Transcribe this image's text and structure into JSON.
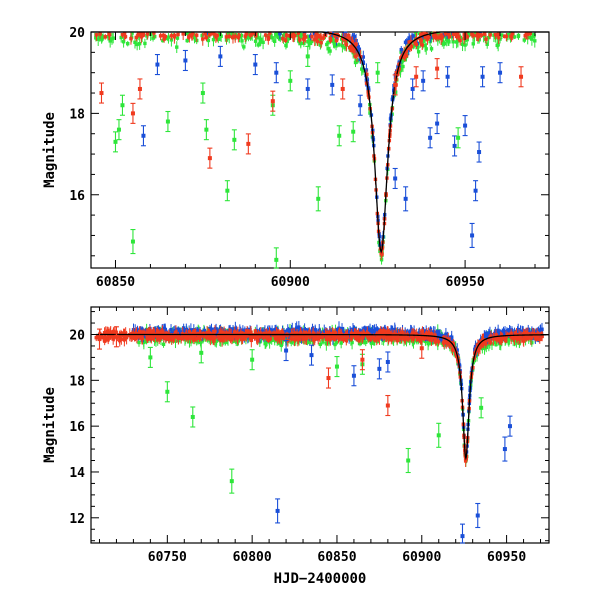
{
  "chart_data": [
    {
      "type": "scatter",
      "panel": "top",
      "title": "",
      "xlabel": "",
      "ylabel": "Magnitude",
      "xlim": [
        60843,
        60974
      ],
      "ylim": [
        20.0,
        14.2
      ],
      "x_ticks": [
        60850,
        60900,
        60950
      ],
      "y_ticks": [
        16,
        18,
        20
      ],
      "model_peak": {
        "t0": 60926.0,
        "peak_mag": 14.6,
        "base_mag": 20.1
      },
      "series": [
        {
          "name": "blue",
          "color": "#1a4fd8",
          "points": [
            [
              60858,
              17.45
            ],
            [
              60952,
              15.0
            ],
            [
              60953,
              16.1
            ],
            [
              60954,
              17.05
            ],
            [
              60947,
              17.2
            ],
            [
              60942,
              17.75
            ],
            [
              60940,
              17.4
            ],
            [
              60950,
              17.7
            ],
            [
              60933,
              15.9
            ],
            [
              60930,
              16.4
            ],
            [
              60905,
              18.6
            ],
            [
              60912,
              18.7
            ],
            [
              60920,
              18.2
            ],
            [
              60935,
              18.6
            ],
            [
              60938,
              18.8
            ],
            [
              60945,
              18.9
            ],
            [
              60955,
              18.9
            ],
            [
              60960,
              19.0
            ],
            [
              60862,
              19.2
            ],
            [
              60870,
              19.3
            ],
            [
              60880,
              19.4
            ],
            [
              60890,
              19.2
            ],
            [
              60896,
              19.0
            ]
          ]
        },
        {
          "name": "green",
          "color": "#2ee63a",
          "points": [
            [
              60855,
              14.85
            ],
            [
              60882,
              16.1
            ],
            [
              60884,
              17.35
            ],
            [
              60896,
              14.4
            ],
            [
              60908,
              15.9
            ],
            [
              60914,
              17.45
            ],
            [
              60918,
              17.55
            ],
            [
              60876,
              17.6
            ],
            [
              60850,
              17.3
            ],
            [
              60851,
              17.6
            ],
            [
              60852,
              18.2
            ],
            [
              60865,
              17.8
            ],
            [
              60875,
              18.5
            ],
            [
              60895,
              18.2
            ],
            [
              60900,
              18.8
            ],
            [
              60948,
              17.4
            ],
            [
              60905,
              19.4
            ],
            [
              60925,
              19.0
            ]
          ]
        },
        {
          "name": "red",
          "color": "#f03a1f",
          "points": [
            [
              60877,
              16.9
            ],
            [
              60888,
              17.25
            ],
            [
              60846,
              18.5
            ],
            [
              60855,
              18.0
            ],
            [
              60857,
              18.6
            ],
            [
              60895,
              18.3
            ],
            [
              60915,
              18.6
            ],
            [
              60966,
              18.9
            ],
            [
              60930,
              18.7
            ],
            [
              60936,
              18.9
            ],
            [
              60942,
              19.1
            ]
          ]
        }
      ]
    },
    {
      "type": "scatter",
      "panel": "bottom",
      "title": "",
      "xlabel": "HJD−2400000",
      "ylabel": "Magnitude",
      "xlim": [
        60705,
        60975
      ],
      "ylim": [
        21.2,
        10.9
      ],
      "x_ticks": [
        60750,
        60800,
        60850,
        60900,
        60950
      ],
      "y_ticks": [
        12,
        14,
        16,
        18,
        20
      ],
      "model_peak": {
        "t0": 60926.0,
        "peak_mag": 14.6,
        "base_mag": 20.0
      },
      "series": [
        {
          "name": "blue",
          "color": "#1a4fd8",
          "points": [
            [
              60815,
              12.3
            ],
            [
              60924,
              11.2
            ],
            [
              60933,
              12.1
            ],
            [
              60949,
              15.0
            ],
            [
              60952,
              16.0
            ],
            [
              60875,
              18.5
            ],
            [
              60860,
              18.2
            ],
            [
              60880,
              18.8
            ],
            [
              60835,
              19.1
            ],
            [
              60820,
              19.3
            ]
          ]
        },
        {
          "name": "green",
          "color": "#2ee63a",
          "points": [
            [
              60788,
              13.6
            ],
            [
              60892,
              14.5
            ],
            [
              60910,
              15.6
            ],
            [
              60935,
              16.8
            ],
            [
              60765,
              16.4
            ],
            [
              60750,
              17.5
            ],
            [
              60740,
              19.0
            ],
            [
              60770,
              19.2
            ],
            [
              60800,
              18.9
            ],
            [
              60850,
              18.6
            ],
            [
              60865,
              18.7
            ]
          ]
        },
        {
          "name": "red",
          "color": "#f03a1f",
          "points": [
            [
              60880,
              16.9
            ],
            [
              60845,
              18.1
            ],
            [
              60865,
              18.9
            ],
            [
              60900,
              19.4
            ],
            [
              60710,
              19.8
            ],
            [
              60720,
              19.9
            ]
          ]
        }
      ]
    }
  ]
}
